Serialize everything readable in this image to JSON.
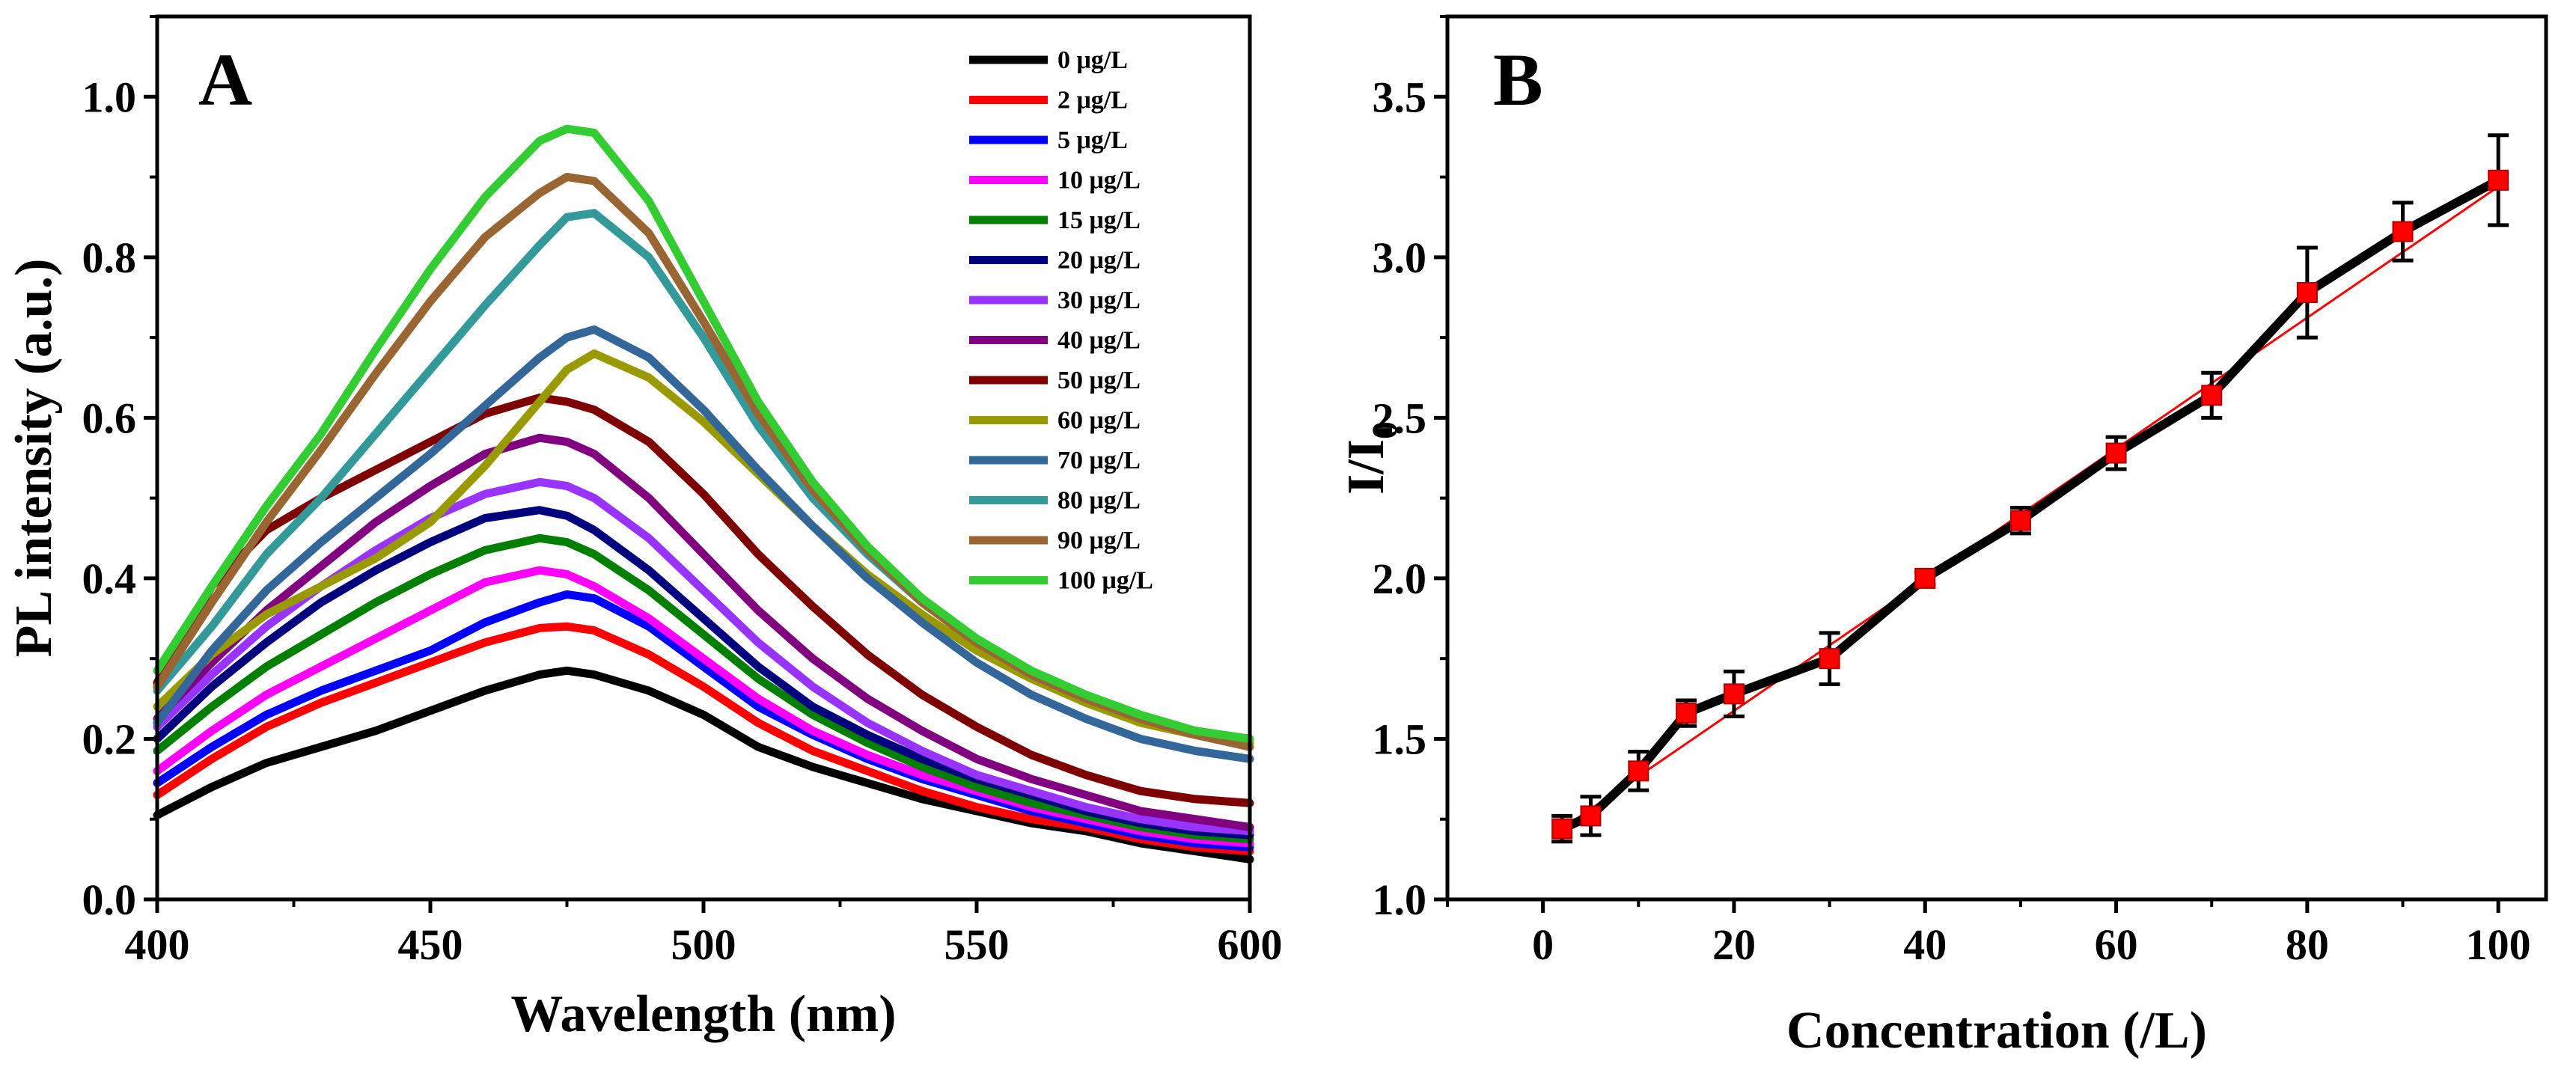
{
  "chart_data": [
    {
      "panel_label": "A",
      "type": "line",
      "xlabel": "Wavelength (nm)",
      "ylabel": "PL intensity (a.u.)",
      "xlim": [
        400,
        600
      ],
      "ylim": [
        0.0,
        1.1
      ],
      "x_ticks": [
        400,
        450,
        500,
        550,
        600
      ],
      "x_tick_labels": [
        "400",
        "450",
        "500",
        "550",
        "600"
      ],
      "y_ticks": [
        0.0,
        0.2,
        0.4,
        0.6,
        0.8,
        1.0
      ],
      "y_tick_labels": [
        "0.0",
        "0.2",
        "0.4",
        "0.6",
        "0.8",
        "1.0"
      ],
      "legend_position": "top-right",
      "x": [
        400,
        410,
        420,
        430,
        440,
        450,
        460,
        470,
        475,
        480,
        490,
        500,
        510,
        520,
        530,
        540,
        550,
        560,
        570,
        580,
        590,
        600
      ],
      "series": [
        {
          "name": "0 μg/L",
          "color": "#000000",
          "values": [
            0.105,
            0.14,
            0.17,
            0.19,
            0.21,
            0.235,
            0.26,
            0.28,
            0.285,
            0.28,
            0.26,
            0.23,
            0.19,
            0.165,
            0.145,
            0.125,
            0.11,
            0.095,
            0.085,
            0.07,
            0.06,
            0.05
          ]
        },
        {
          "name": "2 μg/L",
          "color": "#ff0000",
          "values": [
            0.13,
            0.175,
            0.215,
            0.245,
            0.27,
            0.295,
            0.32,
            0.338,
            0.34,
            0.335,
            0.305,
            0.265,
            0.22,
            0.185,
            0.16,
            0.135,
            0.115,
            0.1,
            0.09,
            0.075,
            0.065,
            0.06
          ]
        },
        {
          "name": "5 μg/L",
          "color": "#0000ff",
          "values": [
            0.145,
            0.19,
            0.23,
            0.26,
            0.285,
            0.31,
            0.345,
            0.37,
            0.38,
            0.375,
            0.34,
            0.29,
            0.24,
            0.205,
            0.175,
            0.15,
            0.13,
            0.11,
            0.095,
            0.08,
            0.07,
            0.065
          ]
        },
        {
          "name": "10 μg/L",
          "color": "#ff00ff",
          "values": [
            0.16,
            0.21,
            0.255,
            0.29,
            0.325,
            0.36,
            0.395,
            0.41,
            0.405,
            0.39,
            0.35,
            0.3,
            0.25,
            0.21,
            0.18,
            0.155,
            0.135,
            0.115,
            0.1,
            0.085,
            0.075,
            0.07
          ]
        },
        {
          "name": "15 μg/L",
          "color": "#007f00",
          "values": [
            0.185,
            0.24,
            0.29,
            0.33,
            0.37,
            0.405,
            0.435,
            0.45,
            0.445,
            0.43,
            0.385,
            0.33,
            0.275,
            0.23,
            0.195,
            0.165,
            0.14,
            0.12,
            0.105,
            0.09,
            0.08,
            0.075
          ]
        },
        {
          "name": "20 μg/L",
          "color": "#00007f",
          "values": [
            0.2,
            0.265,
            0.32,
            0.37,
            0.41,
            0.445,
            0.475,
            0.485,
            0.478,
            0.46,
            0.41,
            0.35,
            0.29,
            0.24,
            0.205,
            0.175,
            0.15,
            0.13,
            0.11,
            0.095,
            0.085,
            0.08
          ]
        },
        {
          "name": "30 μg/L",
          "color": "#9933ff",
          "values": [
            0.215,
            0.28,
            0.34,
            0.39,
            0.435,
            0.475,
            0.505,
            0.52,
            0.515,
            0.5,
            0.45,
            0.385,
            0.32,
            0.265,
            0.22,
            0.185,
            0.155,
            0.135,
            0.115,
            0.1,
            0.09,
            0.085
          ]
        },
        {
          "name": "40 μg/L",
          "color": "#800080",
          "values": [
            0.225,
            0.295,
            0.36,
            0.415,
            0.47,
            0.515,
            0.555,
            0.575,
            0.57,
            0.555,
            0.5,
            0.43,
            0.36,
            0.3,
            0.25,
            0.21,
            0.175,
            0.15,
            0.13,
            0.11,
            0.1,
            0.09
          ]
        },
        {
          "name": "50 μg/L",
          "color": "#7f0000",
          "values": [
            0.27,
            0.39,
            0.46,
            0.5,
            0.535,
            0.57,
            0.605,
            0.625,
            0.62,
            0.61,
            0.57,
            0.505,
            0.43,
            0.365,
            0.305,
            0.255,
            0.215,
            0.18,
            0.155,
            0.135,
            0.125,
            0.12
          ]
        },
        {
          "name": "60 μg/L",
          "color": "#999900",
          "values": [
            0.24,
            0.305,
            0.355,
            0.39,
            0.425,
            0.47,
            0.54,
            0.62,
            0.66,
            0.68,
            0.65,
            0.595,
            0.53,
            0.465,
            0.405,
            0.355,
            0.31,
            0.275,
            0.245,
            0.22,
            0.205,
            0.195
          ]
        },
        {
          "name": "70 μg/L",
          "color": "#336699",
          "values": [
            0.22,
            0.31,
            0.385,
            0.445,
            0.5,
            0.555,
            0.615,
            0.675,
            0.7,
            0.71,
            0.675,
            0.61,
            0.535,
            0.465,
            0.4,
            0.345,
            0.295,
            0.255,
            0.225,
            0.2,
            0.185,
            0.175
          ]
        },
        {
          "name": "80 μg/L",
          "color": "#339999",
          "values": [
            0.26,
            0.34,
            0.43,
            0.5,
            0.58,
            0.66,
            0.74,
            0.815,
            0.85,
            0.855,
            0.8,
            0.7,
            0.59,
            0.5,
            0.43,
            0.37,
            0.32,
            0.28,
            0.25,
            0.225,
            0.21,
            0.2
          ]
        },
        {
          "name": "90 μg/L",
          "color": "#996633",
          "values": [
            0.265,
            0.37,
            0.47,
            0.56,
            0.655,
            0.745,
            0.825,
            0.88,
            0.9,
            0.895,
            0.83,
            0.72,
            0.605,
            0.51,
            0.435,
            0.37,
            0.32,
            0.28,
            0.25,
            0.225,
            0.205,
            0.19
          ]
        },
        {
          "name": "100 μg/L",
          "color": "#33cc33",
          "values": [
            0.285,
            0.39,
            0.49,
            0.58,
            0.685,
            0.785,
            0.875,
            0.945,
            0.96,
            0.955,
            0.87,
            0.745,
            0.62,
            0.52,
            0.44,
            0.375,
            0.325,
            0.285,
            0.255,
            0.23,
            0.21,
            0.2
          ]
        }
      ]
    },
    {
      "panel_label": "B",
      "type": "scatter",
      "xlabel": "Concentration (/L)",
      "ylabel_main": "I/I",
      "ylabel_sub": "0",
      "xlim": [
        -10,
        105
      ],
      "ylim": [
        1.0,
        3.75
      ],
      "x_ticks": [
        0,
        20,
        40,
        60,
        80,
        100
      ],
      "x_tick_labels": [
        "0",
        "20",
        "40",
        "60",
        "80",
        "100"
      ],
      "y_ticks": [
        1.0,
        1.5,
        2.0,
        2.5,
        3.0,
        3.5
      ],
      "y_tick_labels": [
        "1.0",
        "1.5",
        "2.0",
        "2.5",
        "3.0",
        "3.5"
      ],
      "x": [
        2,
        5,
        10,
        15,
        20,
        30,
        40,
        50,
        60,
        70,
        80,
        90,
        100
      ],
      "values": [
        1.22,
        1.26,
        1.4,
        1.58,
        1.64,
        1.75,
        2.0,
        2.18,
        2.39,
        2.57,
        2.89,
        3.08,
        3.24
      ],
      "errors": [
        0.04,
        0.06,
        0.06,
        0.04,
        0.07,
        0.08,
        0.02,
        0.04,
        0.05,
        0.07,
        0.14,
        0.09,
        0.14
      ],
      "marker_color": "#ff0000",
      "line_color": "#000000",
      "fit": {
        "x": [
          2,
          100
        ],
        "y": [
          1.22,
          3.22
        ],
        "color": "#ff0000"
      }
    }
  ]
}
